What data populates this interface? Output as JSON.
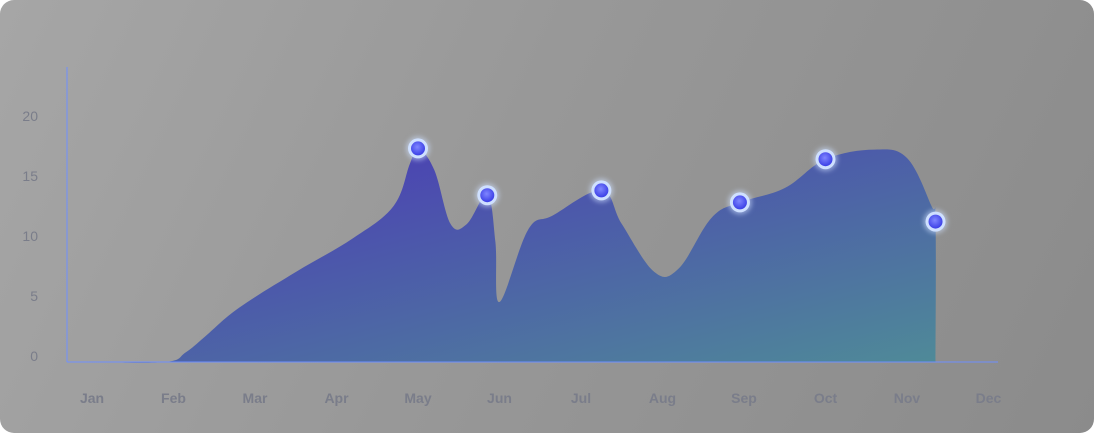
{
  "chart_data": {
    "type": "area",
    "title": "",
    "xlabel": "",
    "ylabel": "",
    "categories": [
      "Jan",
      "Feb",
      "Mar",
      "Apr",
      "May",
      "Jun",
      "Jul",
      "Aug",
      "Sep",
      "Oct",
      "Nov",
      "Dec"
    ],
    "yticks": [
      0,
      5,
      10,
      15,
      20
    ],
    "ylim": [
      0,
      25
    ],
    "grid": false,
    "legend": "none",
    "colors": {
      "fill_start": "#4a34b8",
      "fill_end": "#4f8a98",
      "axis_line": "#6f8fff",
      "marker_fill": "#4a55ff",
      "marker_ring": "#cfe0ff"
    },
    "series": [
      {
        "points": [
          {
            "x": 0.0,
            "y": 0.0
          },
          {
            "x": 0.9,
            "y": 0.0
          },
          {
            "x": 1.15,
            "y": 0.8
          },
          {
            "x": 1.4,
            "y": 2.2
          },
          {
            "x": 1.8,
            "y": 4.5
          },
          {
            "x": 2.5,
            "y": 7.5
          },
          {
            "x": 3.2,
            "y": 10.3
          },
          {
            "x": 3.7,
            "y": 13.0
          },
          {
            "x": 3.9,
            "y": 16.5
          },
          {
            "x": 4.0,
            "y": 17.8
          },
          {
            "x": 4.2,
            "y": 16.0
          },
          {
            "x": 4.4,
            "y": 11.5
          },
          {
            "x": 4.6,
            "y": 11.5
          },
          {
            "x": 4.85,
            "y": 13.9
          },
          {
            "x": 4.95,
            "y": 10.0
          },
          {
            "x": 5.0,
            "y": 5.0
          },
          {
            "x": 5.35,
            "y": 11.0
          },
          {
            "x": 5.65,
            "y": 12.2
          },
          {
            "x": 6.25,
            "y": 14.3
          },
          {
            "x": 6.5,
            "y": 11.5
          },
          {
            "x": 6.9,
            "y": 7.5
          },
          {
            "x": 7.2,
            "y": 7.8
          },
          {
            "x": 7.6,
            "y": 12.0
          },
          {
            "x": 7.95,
            "y": 13.3
          },
          {
            "x": 8.5,
            "y": 14.5
          },
          {
            "x": 9.0,
            "y": 16.9
          },
          {
            "x": 9.6,
            "y": 17.7
          },
          {
            "x": 10.0,
            "y": 17.0
          },
          {
            "x": 10.3,
            "y": 13.0
          },
          {
            "x": 10.35,
            "y": 11.7
          },
          {
            "x": 10.35,
            "y": 0.0
          }
        ],
        "markers": [
          {
            "x": 4.0,
            "y": 17.8
          },
          {
            "x": 4.85,
            "y": 13.9
          },
          {
            "x": 6.25,
            "y": 14.3
          },
          {
            "x": 7.95,
            "y": 13.3
          },
          {
            "x": 9.0,
            "y": 16.9
          },
          {
            "x": 10.35,
            "y": 11.7
          }
        ]
      }
    ]
  }
}
